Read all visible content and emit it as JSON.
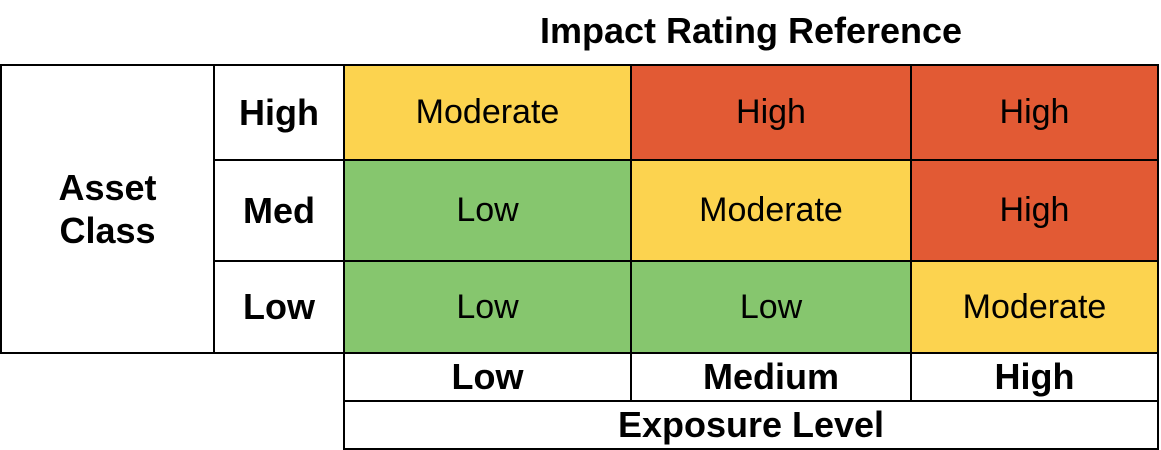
{
  "title": "Impact Rating Reference",
  "y_axis": {
    "title_line1": "Asset",
    "title_line2": "Class",
    "levels": [
      "High",
      "Med",
      "Low"
    ]
  },
  "x_axis": {
    "title": "Exposure Level",
    "levels": [
      "Low",
      "Medium",
      "High"
    ]
  },
  "colors": {
    "Low": "#86c66e",
    "Moderate": "#fcd34f",
    "High": "#e25a34"
  },
  "matrix": {
    "rows": [
      {
        "asset_class": "High",
        "ratings": [
          "Moderate",
          "High",
          "High"
        ]
      },
      {
        "asset_class": "Med",
        "ratings": [
          "Low",
          "Moderate",
          "High"
        ]
      },
      {
        "asset_class": "Low",
        "ratings": [
          "Low",
          "Low",
          "Moderate"
        ]
      }
    ]
  }
}
